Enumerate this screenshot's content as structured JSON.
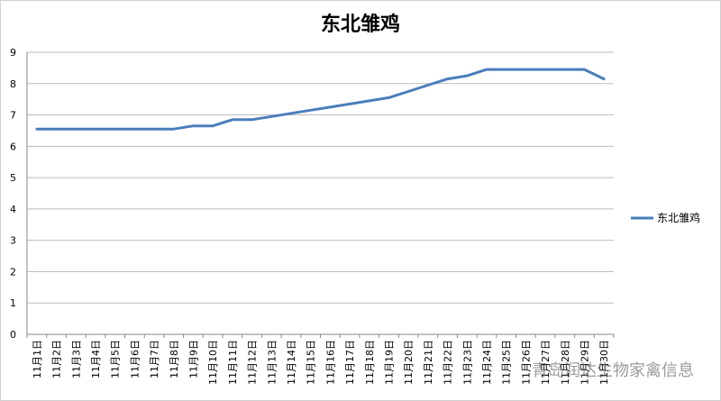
{
  "chart_data": {
    "type": "line",
    "title": "东北雏鸡",
    "ylim": [
      0,
      9
    ],
    "yticks": [
      0,
      1,
      2,
      3,
      4,
      5,
      6,
      7,
      8,
      9
    ],
    "grid": true,
    "legend_position": "right",
    "categories": [
      "11月1日",
      "11月2日",
      "11月3日",
      "11月4日",
      "11月5日",
      "11月6日",
      "11月7日",
      "11月8日",
      "11月9日",
      "11月10日",
      "11月11日",
      "11月12日",
      "11月13日",
      "11月14日",
      "11月15日",
      "11月16日",
      "11月17日",
      "11月18日",
      "11月19日",
      "11月20日",
      "11月21日",
      "11月22日",
      "11月23日",
      "11月24日",
      "11月25日",
      "11月26日",
      "11月27日",
      "11月28日",
      "11月29日",
      "11月30日"
    ],
    "series": [
      {
        "name": "东北雏鸡",
        "color": "#4a7ebb",
        "values": [
          6.55,
          6.55,
          6.55,
          6.55,
          6.55,
          6.55,
          6.55,
          6.55,
          6.65,
          6.65,
          6.85,
          6.85,
          6.95,
          7.05,
          7.15,
          7.25,
          7.35,
          7.45,
          7.55,
          7.75,
          7.95,
          8.15,
          8.25,
          8.45,
          8.45,
          8.45,
          8.45,
          8.45,
          8.45,
          8.15
        ]
      }
    ]
  },
  "watermark": "青岛润达生物家禽信息"
}
